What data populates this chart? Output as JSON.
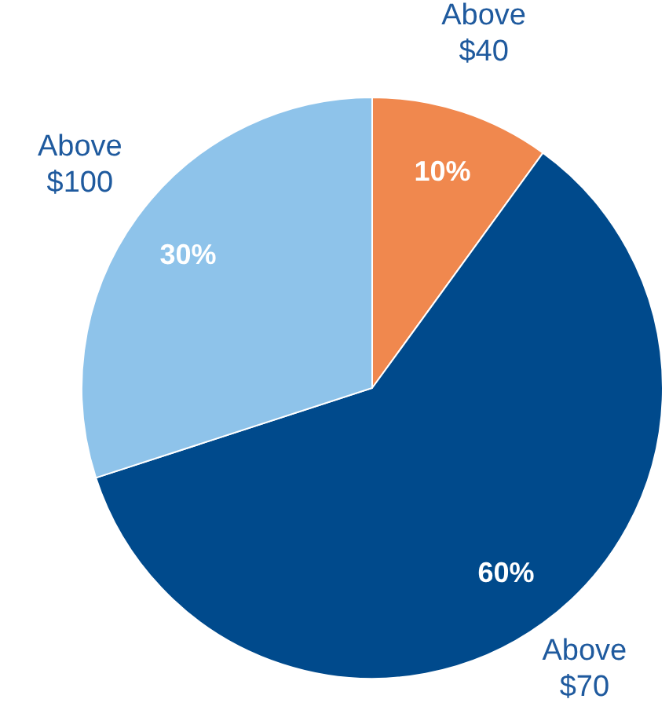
{
  "chart_data": {
    "type": "pie",
    "categories": [
      "Above $40",
      "Above $70",
      "Above $100"
    ],
    "values": [
      10,
      60,
      30
    ],
    "value_labels": [
      "10%",
      "60%",
      "30%"
    ],
    "colors": [
      "#f0884e",
      "#004a8c",
      "#8ec3ea"
    ]
  }
}
